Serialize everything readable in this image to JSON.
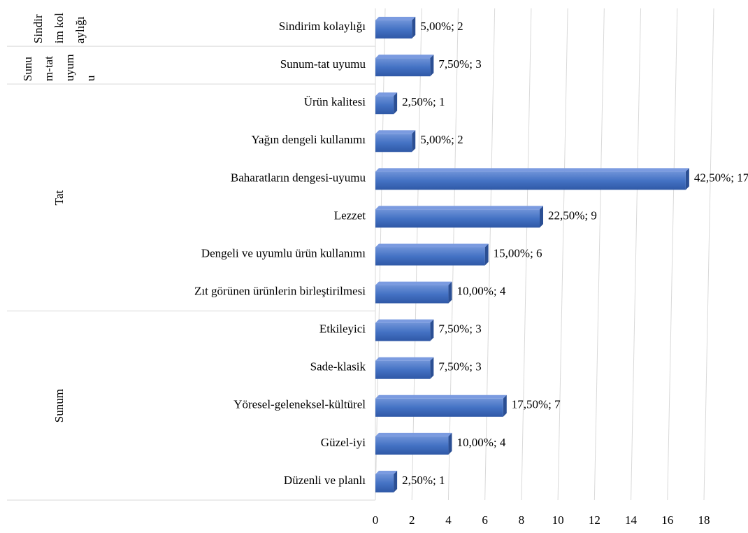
{
  "chart_data": {
    "type": "bar",
    "orientation": "horizontal",
    "categories": [
      "Sindirim kolaylığı",
      "Sunum-tat uyumu",
      "Ürün kalitesi",
      "Yağın dengeli kullanımı",
      "Baharatların dengesi-uyumu",
      "Lezzet",
      "Dengeli ve uyumlu ürün kullanımı",
      "Zıt görünen ürünlerin birleştirilmesi",
      "Etkileyici",
      "Sade-klasik",
      "Yöresel-geleneksel-kültürel",
      "Güzel-iyi",
      "Düzenli ve planlı"
    ],
    "values": [
      2,
      3,
      1,
      2,
      17,
      9,
      6,
      4,
      3,
      3,
      7,
      4,
      1
    ],
    "value_labels": [
      "5,00%; 2",
      "7,50%; 3",
      "2,50%; 1",
      "5,00%; 2",
      "42,50%; 17",
      "22,50%; 9",
      "15,00%; 6",
      "10,00%; 4",
      "7,50%; 3",
      "7,50%; 3",
      "17,50%; 7",
      "10,00%; 4",
      "2,50%; 1"
    ],
    "groups": [
      {
        "label": "Sindirim kolaylığı",
        "span": 1
      },
      {
        "label": "Sunum-tat uyumu",
        "span": 1
      },
      {
        "label": "Tat",
        "span": 6
      },
      {
        "label": "Sunum",
        "span": 5
      }
    ],
    "color": "#4472c4",
    "xlim": [
      0,
      18
    ],
    "xticks": [
      0,
      2,
      4,
      6,
      8,
      10,
      12,
      14,
      16,
      18
    ],
    "grid": true
  }
}
